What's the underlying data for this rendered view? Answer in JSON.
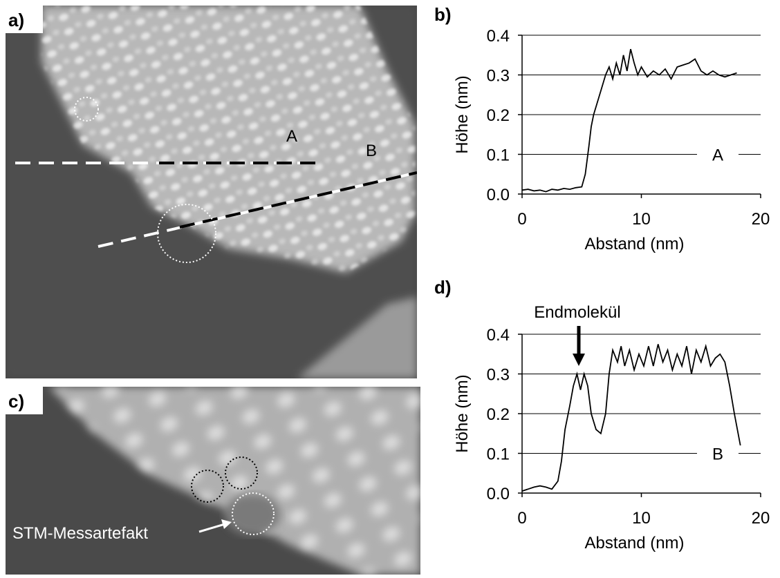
{
  "images": [
    {
      "label": "a)",
      "annotations": [
        "A",
        "B"
      ]
    },
    {
      "label": "c)",
      "annotations": [
        "STM-Messartefakt"
      ]
    }
  ],
  "chart_data": [
    {
      "type": "line",
      "panel_label": "b)",
      "x_label": "Abstand (nm)",
      "y_label": "Höhe (nm)",
      "annotations": [
        "A"
      ],
      "xlim": [
        0,
        20
      ],
      "xticks": [
        0,
        10,
        20
      ],
      "ylim": [
        0,
        0.4
      ],
      "yticks": [
        {
          "value": 0,
          "label": "0.0"
        },
        0.1,
        0.2,
        0.3,
        0.4
      ],
      "grid": true,
      "series": [
        {
          "color": "#000000",
          "x": [
            0,
            0.5,
            1,
            1.5,
            2,
            2.5,
            3,
            3.5,
            4,
            4.5,
            5,
            5.3,
            5.6,
            5.8,
            6,
            6.3,
            6.6,
            7,
            7.3,
            7.6,
            7.9,
            8.2,
            8.5,
            8.8,
            9.1,
            9.4,
            9.7,
            10,
            10.5,
            11,
            11.5,
            12,
            12.5,
            13,
            13.5,
            14,
            14.5,
            15,
            15.5,
            16,
            16.5,
            17,
            17.5,
            18
          ],
          "values": [
            0.01,
            0.012,
            0.008,
            0.01,
            0.006,
            0.012,
            0.01,
            0.014,
            0.012,
            0.016,
            0.018,
            0.05,
            0.12,
            0.17,
            0.2,
            0.23,
            0.26,
            0.3,
            0.32,
            0.29,
            0.33,
            0.3,
            0.35,
            0.31,
            0.365,
            0.33,
            0.3,
            0.32,
            0.295,
            0.31,
            0.3,
            0.315,
            0.29,
            0.32,
            0.325,
            0.33,
            0.34,
            0.31,
            0.3,
            0.31,
            0.3,
            0.295,
            0.3,
            0.305
          ]
        }
      ]
    },
    {
      "type": "line",
      "panel_label": "d)",
      "x_label": "Abstand (nm)",
      "y_label": "Höhe (nm)",
      "annotations": [
        "B",
        "Endmolekül"
      ],
      "xlim": [
        0,
        20
      ],
      "xticks": [
        0,
        10,
        20
      ],
      "ylim": [
        0,
        0.4
      ],
      "yticks": [
        {
          "value": 0,
          "label": "0.0"
        },
        0.1,
        0.2,
        0.3,
        0.4
      ],
      "grid": true,
      "series": [
        {
          "color": "#000000",
          "x": [
            0,
            0.5,
            1,
            1.5,
            2,
            2.5,
            3,
            3.3,
            3.6,
            4,
            4.3,
            4.6,
            4.9,
            5.2,
            5.5,
            5.8,
            6.2,
            6.6,
            7,
            7.3,
            7.6,
            8,
            8.3,
            8.6,
            9,
            9.4,
            9.8,
            10.2,
            10.6,
            11,
            11.4,
            11.8,
            12.2,
            12.6,
            13,
            13.4,
            13.8,
            14.2,
            14.6,
            15,
            15.4,
            15.8,
            16.2,
            16.6,
            17,
            17.4,
            17.8,
            18.3
          ],
          "values": [
            0.005,
            0.01,
            0.015,
            0.018,
            0.015,
            0.01,
            0.03,
            0.08,
            0.16,
            0.22,
            0.27,
            0.3,
            0.26,
            0.3,
            0.27,
            0.2,
            0.16,
            0.15,
            0.2,
            0.3,
            0.36,
            0.33,
            0.37,
            0.32,
            0.36,
            0.31,
            0.35,
            0.32,
            0.37,
            0.32,
            0.375,
            0.33,
            0.36,
            0.31,
            0.35,
            0.32,
            0.37,
            0.3,
            0.36,
            0.33,
            0.37,
            0.32,
            0.34,
            0.35,
            0.33,
            0.27,
            0.2,
            0.12
          ]
        }
      ]
    }
  ]
}
